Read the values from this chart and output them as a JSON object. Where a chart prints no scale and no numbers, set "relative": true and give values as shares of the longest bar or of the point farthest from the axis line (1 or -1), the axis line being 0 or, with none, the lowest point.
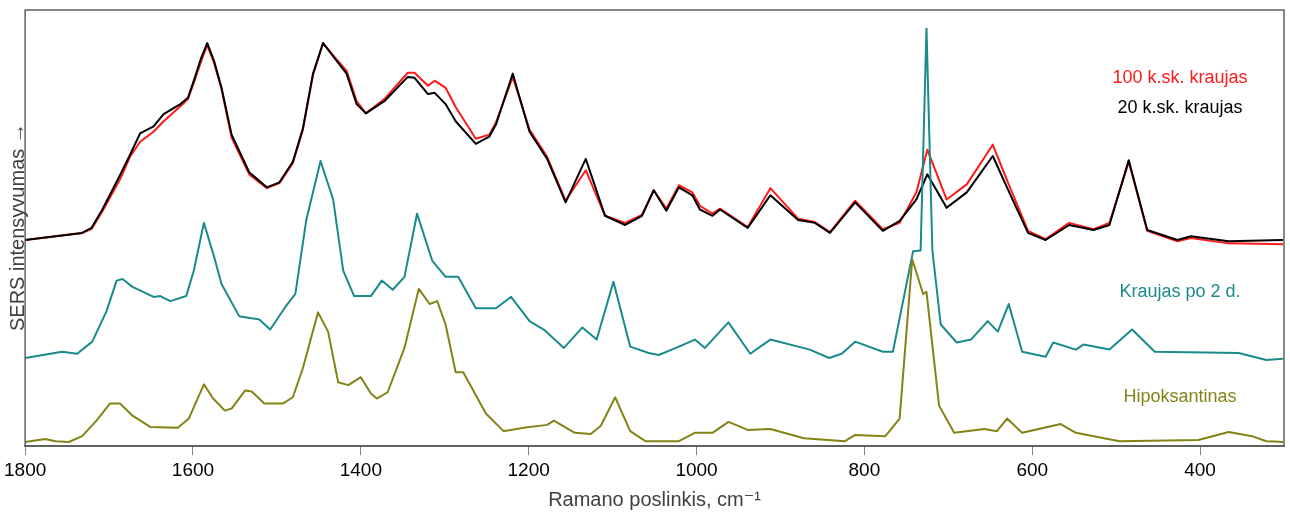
{
  "chart_data": {
    "type": "line",
    "relative": true,
    "xlabel": "Ramano poslinkis, cm⁻¹",
    "ylabel": "SERS intensyvumas →",
    "xlim": [
      1800,
      300
    ],
    "xticks": [
      1800,
      1600,
      1400,
      1200,
      1000,
      800,
      600,
      400
    ],
    "marker": "none",
    "line_style": "solid",
    "x": [
      1800,
      1732,
      1721,
      1708,
      1687,
      1675,
      1663,
      1647,
      1635,
      1615,
      1606,
      1599,
      1590,
      1583,
      1575,
      1566,
      1554,
      1533,
      1512,
      1497,
      1481,
      1469,
      1457,
      1445,
      1429,
      1417,
      1405,
      1394,
      1372,
      1344,
      1336,
      1320,
      1312,
      1299,
      1287,
      1263,
      1247,
      1239,
      1219,
      1199,
      1178,
      1156,
      1132,
      1109,
      1085,
      1065,
      1051,
      1036,
      1021,
      1005,
      996,
      981,
      972,
      939,
      912,
      879,
      859,
      841,
      811,
      778,
      758,
      738,
      725,
      702,
      678,
      647,
      629,
      605,
      584,
      556,
      527,
      508,
      485,
      463,
      427,
      411,
      366,
      302
    ],
    "series": [
      {
        "name": "100 k.sk. kraujas",
        "color": "#ff1a1a",
        "values": [
          0.493,
          0.51,
          0.519,
          0.561,
          0.638,
          0.692,
          0.728,
          0.752,
          0.777,
          0.813,
          0.83,
          0.869,
          0.922,
          0.959,
          0.917,
          0.854,
          0.738,
          0.65,
          0.617,
          0.629,
          0.677,
          0.757,
          0.888,
          0.964,
          0.925,
          0.898,
          0.825,
          0.796,
          0.83,
          0.893,
          0.893,
          0.862,
          0.874,
          0.857,
          0.811,
          0.735,
          0.745,
          0.774,
          0.883,
          0.757,
          0.692,
          0.587,
          0.66,
          0.551,
          0.534,
          0.553,
          0.612,
          0.568,
          0.624,
          0.607,
          0.575,
          0.556,
          0.568,
          0.524,
          0.617,
          0.544,
          0.536,
          0.512,
          0.587,
          0.519,
          0.534,
          0.607,
          0.709,
          0.59,
          0.626,
          0.721,
          0.631,
          0.515,
          0.495,
          0.534,
          0.519,
          0.534,
          0.68,
          0.515,
          0.49,
          0.498,
          0.485,
          0.483
        ]
      },
      {
        "name": "20 k.sk. kraujas",
        "color": "#000000",
        "values": [
          0.493,
          0.51,
          0.522,
          0.566,
          0.648,
          0.697,
          0.748,
          0.765,
          0.794,
          0.818,
          0.833,
          0.874,
          0.93,
          0.964,
          0.922,
          0.857,
          0.745,
          0.655,
          0.619,
          0.631,
          0.68,
          0.76,
          0.891,
          0.964,
          0.922,
          0.891,
          0.818,
          0.796,
          0.825,
          0.883,
          0.881,
          0.842,
          0.845,
          0.818,
          0.777,
          0.723,
          0.74,
          0.769,
          0.891,
          0.752,
          0.687,
          0.583,
          0.687,
          0.551,
          0.529,
          0.551,
          0.612,
          0.563,
          0.619,
          0.6,
          0.566,
          0.551,
          0.566,
          0.522,
          0.6,
          0.541,
          0.534,
          0.51,
          0.583,
          0.515,
          0.539,
          0.59,
          0.65,
          0.57,
          0.607,
          0.694,
          0.614,
          0.51,
          0.493,
          0.529,
          0.517,
          0.529,
          0.684,
          0.517,
          0.493,
          0.502,
          0.49,
          0.493
        ]
      },
      {
        "name": "Kraujas po 2 d.",
        "color": "#1a8a8a",
        "x": [
          1800,
          1756,
          1738,
          1720,
          1703,
          1691,
          1684,
          1672,
          1647,
          1639,
          1627,
          1608,
          1599,
          1587,
          1575,
          1566,
          1545,
          1521,
          1508,
          1490,
          1478,
          1465,
          1448,
          1433,
          1421,
          1408,
          1388,
          1375,
          1362,
          1348,
          1333,
          1315,
          1299,
          1284,
          1263,
          1239,
          1221,
          1199,
          1182,
          1158,
          1136,
          1119,
          1099,
          1079,
          1057,
          1045,
          1021,
          1002,
          990,
          962,
          936,
          912,
          865,
          842,
          827,
          811,
          778,
          766,
          742,
          733,
          726,
          719,
          709,
          690,
          673,
          653,
          641,
          628,
          612,
          584,
          575,
          548,
          539,
          508,
          481,
          454,
          354,
          321,
          302
        ],
        "values": [
          0.211,
          0.226,
          0.221,
          0.25,
          0.323,
          0.396,
          0.4,
          0.381,
          0.357,
          0.359,
          0.347,
          0.359,
          0.42,
          0.534,
          0.454,
          0.388,
          0.311,
          0.303,
          0.279,
          0.333,
          0.364,
          0.541,
          0.682,
          0.59,
          0.42,
          0.359,
          0.359,
          0.396,
          0.374,
          0.405,
          0.556,
          0.444,
          0.405,
          0.405,
          0.33,
          0.33,
          0.357,
          0.299,
          0.279,
          0.235,
          0.284,
          0.255,
          0.393,
          0.238,
          0.223,
          0.218,
          0.238,
          0.255,
          0.235,
          0.296,
          0.221,
          0.255,
          0.231,
          0.211,
          0.221,
          0.25,
          0.226,
          0.226,
          0.466,
          0.468,
          1.0,
          0.468,
          0.291,
          0.248,
          0.255,
          0.299,
          0.274,
          0.34,
          0.226,
          0.214,
          0.248,
          0.231,
          0.243,
          0.231,
          0.279,
          0.226,
          0.223,
          0.206,
          0.209
        ]
      },
      {
        "name": "Hipoksantinas",
        "color": "#838316",
        "x": [
          1800,
          1776,
          1764,
          1748,
          1732,
          1715,
          1699,
          1687,
          1672,
          1651,
          1618,
          1605,
          1587,
          1576,
          1562,
          1554,
          1538,
          1530,
          1515,
          1493,
          1481,
          1469,
          1451,
          1439,
          1427,
          1415,
          1400,
          1388,
          1381,
          1368,
          1348,
          1331,
          1318,
          1309,
          1299,
          1287,
          1278,
          1251,
          1230,
          1206,
          1178,
          1170,
          1145,
          1126,
          1114,
          1097,
          1079,
          1061,
          1021,
          1002,
          981,
          962,
          939,
          912,
          872,
          823,
          811,
          775,
          758,
          743,
          730,
          726,
          711,
          693,
          657,
          642,
          630,
          612,
          566,
          548,
          496,
          402,
          366,
          338,
          321,
          302
        ],
        "values": [
          0.01,
          0.017,
          0.012,
          0.01,
          0.024,
          0.061,
          0.102,
          0.102,
          0.073,
          0.046,
          0.044,
          0.066,
          0.148,
          0.114,
          0.085,
          0.09,
          0.133,
          0.131,
          0.102,
          0.102,
          0.117,
          0.187,
          0.32,
          0.274,
          0.153,
          0.146,
          0.165,
          0.126,
          0.114,
          0.129,
          0.235,
          0.376,
          0.34,
          0.347,
          0.291,
          0.177,
          0.177,
          0.078,
          0.036,
          0.044,
          0.051,
          0.061,
          0.032,
          0.029,
          0.049,
          0.117,
          0.036,
          0.012,
          0.012,
          0.032,
          0.032,
          0.058,
          0.039,
          0.041,
          0.019,
          0.012,
          0.027,
          0.024,
          0.066,
          0.447,
          0.364,
          0.369,
          0.097,
          0.032,
          0.041,
          0.036,
          0.066,
          0.032,
          0.053,
          0.032,
          0.012,
          0.015,
          0.034,
          0.024,
          0.012,
          0.01
        ]
      }
    ]
  }
}
